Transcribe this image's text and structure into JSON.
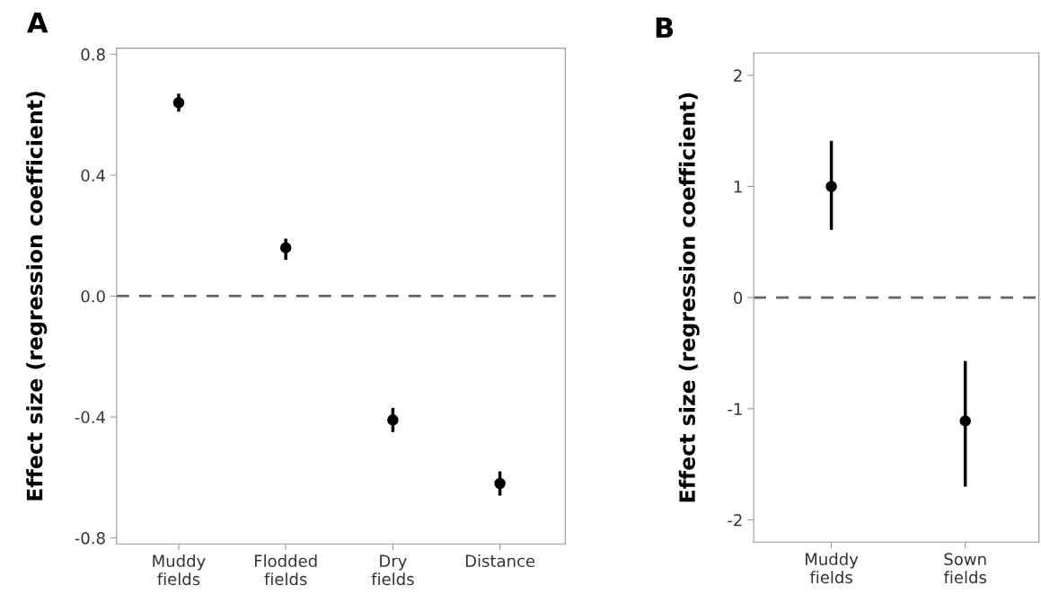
{
  "chart_data": [
    {
      "type": "scatter",
      "title": "A",
      "ylabel": "Effect size (regression coefficient)",
      "categories": [
        "Muddy\nfields",
        "Flodded\nfields",
        "Dry\nfields",
        "Distance"
      ],
      "series": [
        {
          "color": "#000000",
          "values": [
            0.64,
            0.16,
            -0.41,
            -0.62
          ],
          "errors": [
            [
              0.61,
              0.67
            ],
            [
              0.12,
              0.19
            ],
            [
              -0.45,
              -0.37
            ],
            [
              -0.66,
              -0.58
            ]
          ]
        }
      ],
      "ylim": [
        -0.82,
        0.82
      ],
      "yticks": [
        {
          "value": 0.8,
          "label": "0.8"
        },
        {
          "value": 0.4,
          "label": "0.4"
        },
        {
          "value": 0,
          "label": "0.0"
        },
        {
          "value": -0.4,
          "label": "-0.4"
        },
        {
          "value": -0.8,
          "label": "-0.8"
        }
      ],
      "ref_lines": [
        {
          "axis": "y",
          "value": 0,
          "color": "#666666",
          "line_style": "dashed"
        }
      ],
      "marker": "circle",
      "grid": false,
      "legend": false
    },
    {
      "type": "scatter",
      "title": "B",
      "ylabel": "Effect size (regression coefficient)",
      "categories": [
        "Muddy\nfields",
        "Sown\nfields"
      ],
      "series": [
        {
          "color": "#000000",
          "values": [
            1.0,
            -1.11
          ],
          "errors": [
            [
              0.61,
              1.41
            ],
            [
              -1.7,
              -0.57
            ]
          ]
        }
      ],
      "ylim": [
        -2.2,
        2.2
      ],
      "yticks": [
        2,
        1,
        0,
        -1,
        -2
      ],
      "ref_lines": [
        {
          "axis": "y",
          "value": 0,
          "color": "#666666",
          "line_style": "dashed"
        }
      ],
      "marker": "circle",
      "grid": false,
      "legend": false
    }
  ]
}
